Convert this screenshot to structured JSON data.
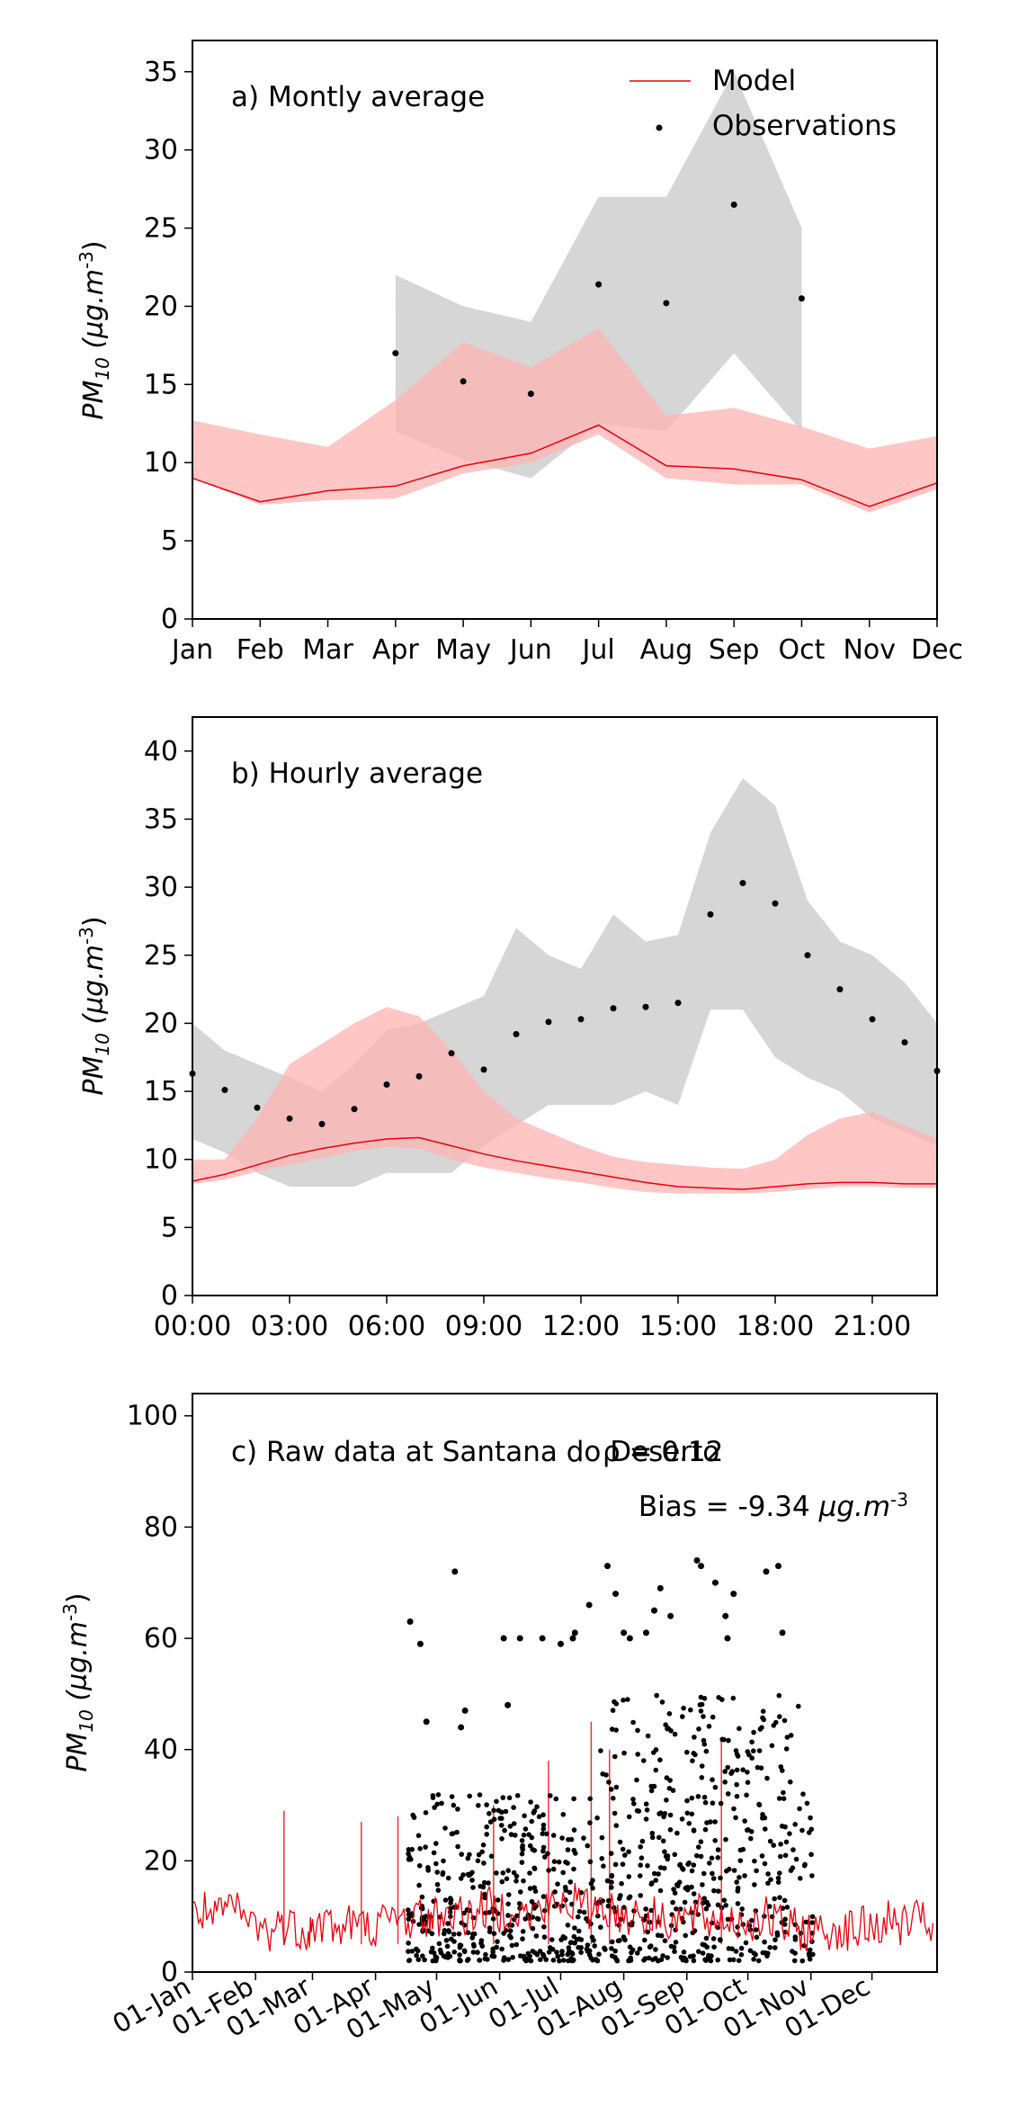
{
  "chart_data": [
    {
      "type": "line",
      "panel_label": "a) Montly average",
      "ylabel": "PM10 (µg.m-3)",
      "ylabel_main": "PM",
      "ylabel_sub": "10",
      "ylabel_unit": "(µg.m",
      "ylabel_exp": "-3",
      "ylabel_close": ")",
      "ylim": [
        0,
        37
      ],
      "yticks": [
        0,
        5,
        10,
        15,
        20,
        25,
        30,
        35
      ],
      "categories": [
        "Jan",
        "Feb",
        "Mar",
        "Apr",
        "May",
        "Jun",
        "Jul",
        "Aug",
        "Sep",
        "Oct",
        "Nov",
        "Dec"
      ],
      "legend": {
        "placement": "top-right",
        "model": "Model",
        "observations": "Observations"
      },
      "model_mean": [
        9.0,
        7.5,
        8.2,
        8.5,
        9.8,
        10.6,
        12.4,
        9.8,
        9.6,
        8.9,
        7.2,
        8.7
      ],
      "model_lower": [
        9.0,
        7.3,
        7.6,
        7.7,
        9.3,
        10.0,
        11.8,
        9.0,
        8.6,
        8.6,
        6.8,
        8.3
      ],
      "model_upper": [
        12.7,
        11.8,
        11.0,
        14.0,
        17.7,
        16.1,
        18.6,
        13.0,
        13.5,
        12.3,
        10.9,
        11.7
      ],
      "obs_x": [
        3,
        4,
        5,
        6,
        7,
        8,
        9
      ],
      "obs_mean": [
        17.0,
        15.2,
        14.4,
        21.4,
        20.2,
        26.5,
        20.5
      ],
      "obs_lower": [
        12.0,
        10.2,
        9.0,
        12.5,
        12.0,
        17.0,
        12.0
      ],
      "obs_upper": [
        22.0,
        20.0,
        19.0,
        27.0,
        27.0,
        35.0,
        25.0
      ],
      "colors": {
        "model": "#e8000b",
        "model_band": "#ffb3b3",
        "obs_band": "#d6d6d6",
        "obs": "#000000"
      }
    },
    {
      "type": "line",
      "panel_label": "b) Hourly average",
      "ylabel": "PM10 (µg.m-3)",
      "ylim": [
        0,
        42.5
      ],
      "yticks": [
        0,
        5,
        10,
        15,
        20,
        25,
        30,
        35,
        40
      ],
      "xlim": [
        0,
        23
      ],
      "xticks": [
        0,
        3,
        6,
        9,
        12,
        15,
        18,
        21
      ],
      "xtick_labels": [
        "00:00",
        "03:00",
        "06:00",
        "09:00",
        "12:00",
        "15:00",
        "18:00",
        "21:00"
      ],
      "x": [
        0,
        1,
        2,
        3,
        4,
        5,
        6,
        7,
        8,
        9,
        10,
        11,
        12,
        13,
        14,
        15,
        16,
        17,
        18,
        19,
        20,
        21,
        22,
        23
      ],
      "model_mean": [
        8.4,
        8.9,
        9.6,
        10.3,
        10.8,
        11.2,
        11.5,
        11.6,
        11.0,
        10.4,
        9.9,
        9.5,
        9.1,
        8.7,
        8.3,
        8.0,
        7.9,
        7.8,
        8.0,
        8.2,
        8.3,
        8.3,
        8.2,
        8.2
      ],
      "model_lower": [
        8.2,
        8.5,
        9.1,
        9.6,
        10.1,
        10.6,
        10.9,
        10.8,
        10.0,
        9.4,
        9.0,
        8.6,
        8.3,
        7.9,
        7.6,
        7.5,
        7.5,
        7.5,
        7.6,
        7.8,
        8.0,
        8.0,
        7.9,
        7.9
      ],
      "model_upper": [
        10.0,
        10.0,
        13.0,
        17.0,
        18.5,
        20.0,
        21.2,
        20.5,
        18.0,
        15.0,
        13.0,
        12.0,
        11.0,
        10.2,
        9.8,
        9.6,
        9.4,
        9.3,
        10.0,
        11.8,
        13.0,
        13.5,
        12.5,
        11.5
      ],
      "obs_mean": [
        16.3,
        15.1,
        13.8,
        13.0,
        12.6,
        13.7,
        15.5,
        16.1,
        17.8,
        16.6,
        19.2,
        20.1,
        20.3,
        21.1,
        21.2,
        21.5,
        28.0,
        30.3,
        28.8,
        25.0,
        22.5,
        20.3,
        18.6,
        16.5
      ],
      "obs_lower": [
        11.5,
        10.5,
        9.0,
        8.0,
        8.0,
        8.0,
        9.0,
        9.0,
        9.0,
        11.0,
        12.5,
        14.0,
        14.0,
        14.0,
        15.0,
        14.0,
        21.0,
        21.0,
        17.5,
        16.0,
        15.0,
        13.0,
        12.0,
        11.0
      ],
      "obs_upper": [
        20.0,
        18.0,
        17.0,
        16.0,
        15.0,
        17.0,
        19.5,
        20.0,
        21.0,
        22.0,
        27.0,
        25.0,
        24.0,
        28.0,
        26.0,
        26.5,
        34.0,
        38.0,
        36.0,
        29.0,
        26.0,
        25.0,
        23.0,
        20.0
      ],
      "colors": {
        "model": "#e8000b",
        "model_band": "#ffb3b3",
        "obs_band": "#d6d6d6",
        "obs": "#000000"
      }
    },
    {
      "type": "scatter",
      "panel_label": "c) Raw data at Santana do Deserto",
      "rho_label": "ρ = 0.12",
      "bias_text": "Bias = -9.34 ",
      "bias_unit": "µg.m",
      "bias_exp": "-3",
      "ylabel": "PM10 (µg.m-3)",
      "ylim": [
        0,
        104
      ],
      "yticks": [
        0,
        20,
        40,
        60,
        80,
        100
      ],
      "xlim": [
        0,
        366
      ],
      "xtick_days": [
        0,
        31,
        59,
        90,
        120,
        151,
        181,
        212,
        243,
        273,
        304,
        334
      ],
      "xtick_labels": [
        "01-Jan",
        "01-Feb",
        "01-Mar",
        "01-Apr",
        "01-May",
        "01-Jun",
        "01-Jul",
        "01-Aug",
        "01-Sep",
        "01-Oct",
        "01-Nov",
        "01-Dec"
      ],
      "model_series": {
        "day": [
          0,
          6,
          12,
          18,
          24,
          31,
          38,
          44,
          50,
          56,
          59,
          66,
          72,
          78,
          84,
          90,
          97,
          104,
          110,
          116,
          120,
          127,
          134,
          140,
          146,
          151,
          158,
          164,
          170,
          176,
          181,
          188,
          194,
          200,
          206,
          212,
          219,
          225,
          231,
          237,
          243,
          249,
          255,
          261,
          267,
          273,
          280,
          286,
          292,
          298,
          304,
          311,
          317,
          323,
          329,
          334,
          341,
          347,
          353,
          359,
          365
        ],
        "value": [
          10.5,
          11,
          9,
          12,
          10,
          8.5,
          7,
          9,
          8,
          7.5,
          8,
          9,
          7.5,
          9,
          8,
          8.5,
          9,
          9.5,
          10,
          9.5,
          10,
          11,
          10,
          11,
          11.5,
          11,
          12,
          10,
          11,
          11.5,
          12.5,
          13,
          11,
          12.5,
          11,
          10,
          11,
          9.5,
          10,
          9.5,
          9.5,
          10,
          9,
          10,
          9,
          9,
          10,
          9,
          8,
          7.5,
          7.5,
          7,
          8,
          7.5,
          8,
          8,
          9,
          8.5,
          9,
          9,
          8.5
        ],
        "peak_days": [
          45,
          83,
          101,
          148,
          175,
          196,
          205,
          260
        ],
        "peak_values": [
          29,
          27,
          28,
          30,
          38,
          45,
          40,
          42
        ]
      },
      "obs_period_days": [
        106,
        305
      ],
      "obs_outliers": {
        "day": [
          107,
          112,
          115,
          129,
          132,
          134,
          153,
          155,
          161,
          172,
          181,
          187,
          188,
          195,
          204,
          208,
          212,
          215,
          223,
          227,
          230,
          235,
          248,
          250,
          257,
          262,
          263,
          266,
          282,
          288,
          290
        ],
        "value": [
          63,
          59,
          45,
          72,
          44,
          47,
          60,
          48,
          60,
          60,
          59,
          60,
          61,
          66,
          73,
          68,
          61,
          60,
          61,
          65,
          69,
          64,
          74,
          73,
          70,
          64,
          60,
          68,
          72,
          73,
          61
        ]
      },
      "colors": {
        "model": "#e8000b",
        "obs": "#000000"
      }
    }
  ]
}
